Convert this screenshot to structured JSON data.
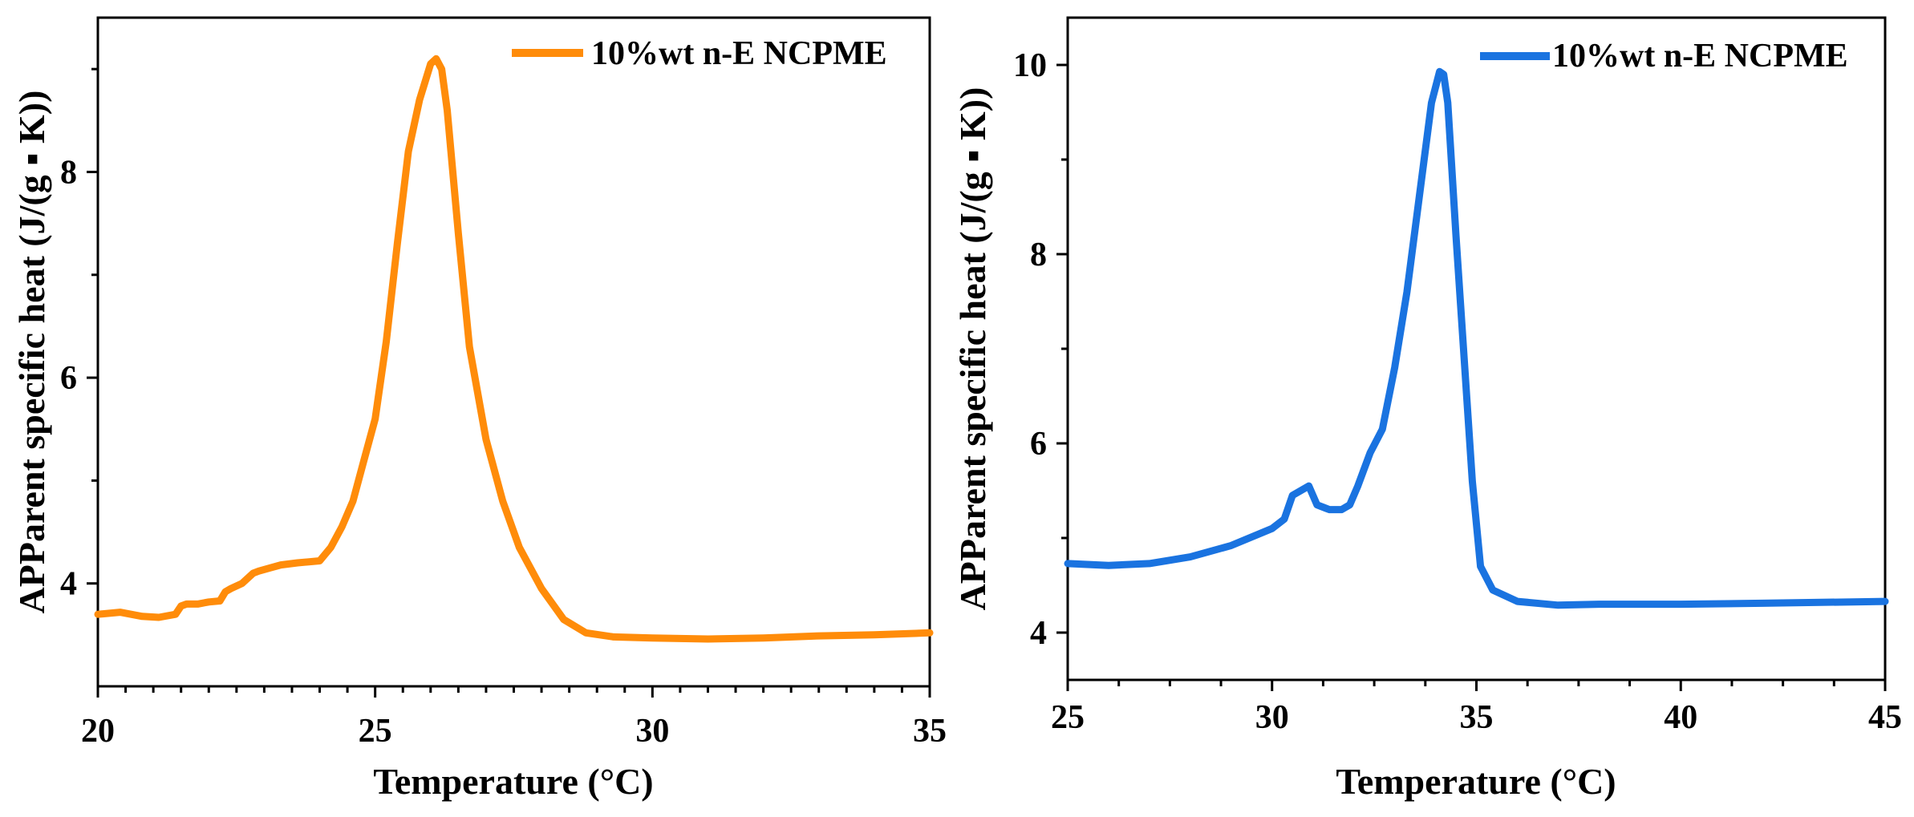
{
  "chart_data": [
    {
      "type": "line",
      "title": "",
      "xlabel": "Temperature (°C)",
      "ylabel": "APParent specific heat (J/(g ▪ K))",
      "xlim": [
        20,
        35
      ],
      "ylim": [
        3.0,
        9.5
      ],
      "xticks": [
        20,
        25,
        30,
        35
      ],
      "xtick_labels": [
        "20",
        "25",
        "30",
        "35"
      ],
      "yticks": [
        4,
        6,
        8
      ],
      "ytick_labels": [
        "4",
        "6",
        "8"
      ],
      "grid": false,
      "legend_position": "top-right",
      "series": [
        {
          "name": "10%wt n-E NCPME",
          "color": "#ff8c0a",
          "x": [
            20.0,
            20.4,
            20.8,
            21.1,
            21.4,
            21.5,
            21.6,
            21.8,
            22.0,
            22.2,
            22.3,
            22.4,
            22.6,
            22.8,
            22.9,
            23.1,
            23.3,
            23.6,
            24.0,
            24.2,
            24.4,
            24.6,
            24.8,
            25.0,
            25.2,
            25.4,
            25.6,
            25.8,
            26.0,
            26.1,
            26.2,
            26.3,
            26.5,
            26.7,
            27.0,
            27.3,
            27.6,
            28.0,
            28.4,
            28.8,
            29.3,
            30.0,
            31.0,
            32.0,
            33.0,
            34.0,
            35.0
          ],
          "values": [
            3.7,
            3.72,
            3.68,
            3.67,
            3.7,
            3.78,
            3.8,
            3.8,
            3.82,
            3.83,
            3.92,
            3.95,
            4.0,
            4.1,
            4.12,
            4.15,
            4.18,
            4.2,
            4.22,
            4.35,
            4.55,
            4.8,
            5.2,
            5.6,
            6.35,
            7.3,
            8.2,
            8.7,
            9.05,
            9.1,
            9.0,
            8.6,
            7.4,
            6.3,
            5.4,
            4.8,
            4.35,
            3.95,
            3.65,
            3.52,
            3.48,
            3.47,
            3.46,
            3.47,
            3.49,
            3.5,
            3.52
          ]
        }
      ]
    },
    {
      "type": "line",
      "title": "",
      "xlabel": "Temperature (°C)",
      "ylabel": "APParent specific heat (J/(g ▪ K))",
      "xlim": [
        25,
        45
      ],
      "ylim": [
        3.5,
        10.5
      ],
      "xticks": [
        25,
        30,
        35,
        40,
        45
      ],
      "xtick_labels": [
        "25",
        "30",
        "35",
        "40",
        "45"
      ],
      "yticks": [
        4,
        6,
        8,
        10
      ],
      "ytick_labels": [
        "4",
        "6",
        "8",
        "10"
      ],
      "grid": false,
      "legend_position": "top-right",
      "series": [
        {
          "name": "10%wt n-E NCPME",
          "color": "#1a73e0",
          "x": [
            25.0,
            26.0,
            27.0,
            28.0,
            29.0,
            30.0,
            30.3,
            30.5,
            30.7,
            30.9,
            31.1,
            31.4,
            31.7,
            31.9,
            32.1,
            32.4,
            32.7,
            33.0,
            33.3,
            33.6,
            33.9,
            34.1,
            34.2,
            34.3,
            34.5,
            34.7,
            34.9,
            35.1,
            35.4,
            36.0,
            37.0,
            38.0,
            40.0,
            42.0,
            45.0
          ],
          "values": [
            4.73,
            4.71,
            4.73,
            4.8,
            4.92,
            5.1,
            5.2,
            5.45,
            5.5,
            5.55,
            5.35,
            5.3,
            5.3,
            5.35,
            5.55,
            5.9,
            6.15,
            6.8,
            7.6,
            8.6,
            9.6,
            9.93,
            9.9,
            9.6,
            8.2,
            6.9,
            5.6,
            4.7,
            4.45,
            4.33,
            4.29,
            4.3,
            4.3,
            4.31,
            4.33
          ]
        }
      ]
    }
  ]
}
